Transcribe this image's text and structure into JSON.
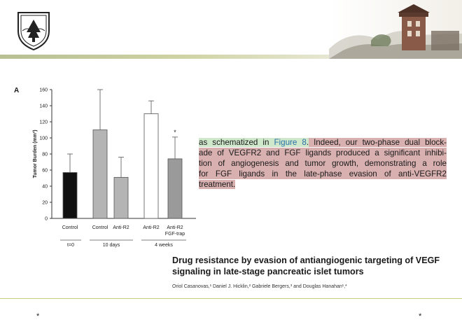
{
  "panel_label": "A",
  "quote": {
    "line1_green": "as schematized in ",
    "line1_ref": "Figure 8",
    "line1_green_end": ".",
    "line1_red": " Indeed, our two-phase dual block-",
    "line2": "ade of VEGFR2 and FGF ligands produced a significant inhibi-",
    "line3": "tion of angiogenesis and tumor growth, demonstrating a role",
    "line4": "for FGF ligands in the late-phase evasion of anti-VEGFR2",
    "line5": "treatment."
  },
  "paper": {
    "title_line1": "Drug resistance by evasion of antiangiogenic targeting of VEGF",
    "title_line2": "signaling in late-stage pancreatic islet tumors",
    "authors": "Oriol Casanovas,¹ Daniel J. Hicklin,² Gabriele Bergers,³ and Douglas Hanahan¹,*"
  },
  "footer": {
    "star_left": "*",
    "star_right": "*"
  },
  "chart_data": {
    "type": "bar",
    "ylabel": "Tumor Burden (mm³)",
    "ylim": [
      0,
      160
    ],
    "yticks": [
      0,
      20,
      40,
      60,
      80,
      100,
      120,
      140,
      160
    ],
    "categories": [
      "Control",
      "Control",
      "Anti-R2",
      "Anti-R2",
      "Anti-R2 FGF-trap"
    ],
    "values": [
      57,
      110,
      51,
      130,
      74
    ],
    "errors": [
      23,
      50,
      25,
      16,
      27
    ],
    "bar_colors": [
      "#111111",
      "#b4b4b4",
      "#b4b4b4",
      "#ffffff",
      "#9a9a9a"
    ],
    "group_labels": [
      "t=0",
      "10 days",
      "4 weeks"
    ],
    "significance": [
      {
        "bar": 4,
        "label": "*"
      }
    ]
  }
}
